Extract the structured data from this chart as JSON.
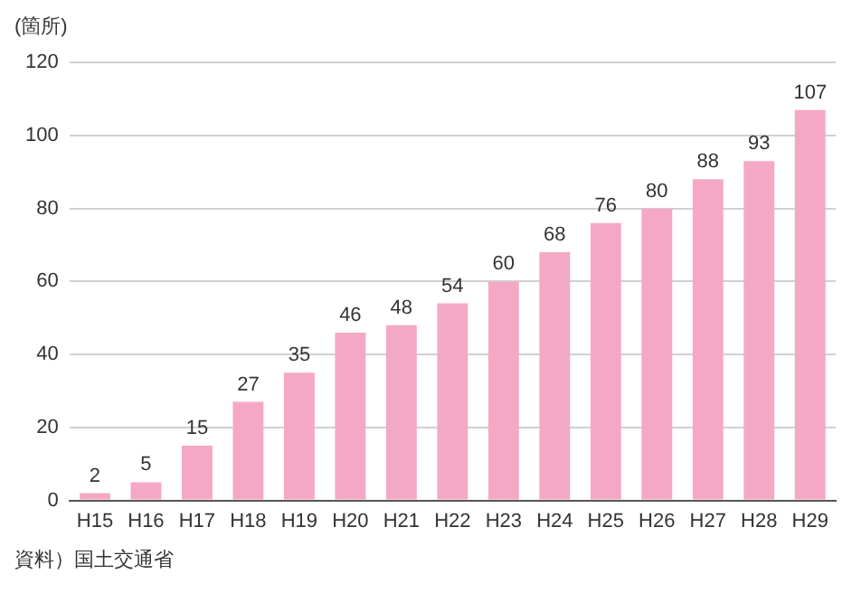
{
  "chart_data": {
    "type": "bar",
    "ylabel": "(箇所)",
    "annotations": [
      "資料）国土交通省"
    ],
    "categories": [
      "H15",
      "H16",
      "H17",
      "H18",
      "H19",
      "H20",
      "H21",
      "H22",
      "H23",
      "H24",
      "H25",
      "H26",
      "H27",
      "H28",
      "H29"
    ],
    "values": [
      2,
      5,
      15,
      27,
      35,
      46,
      48,
      54,
      60,
      68,
      76,
      80,
      88,
      93,
      107
    ],
    "color": "#f5a8c5",
    "ylim": [
      0,
      120
    ],
    "yticks": [
      0,
      20,
      40,
      60,
      80,
      100,
      120
    ],
    "grid": "y",
    "data_labels": true
  }
}
